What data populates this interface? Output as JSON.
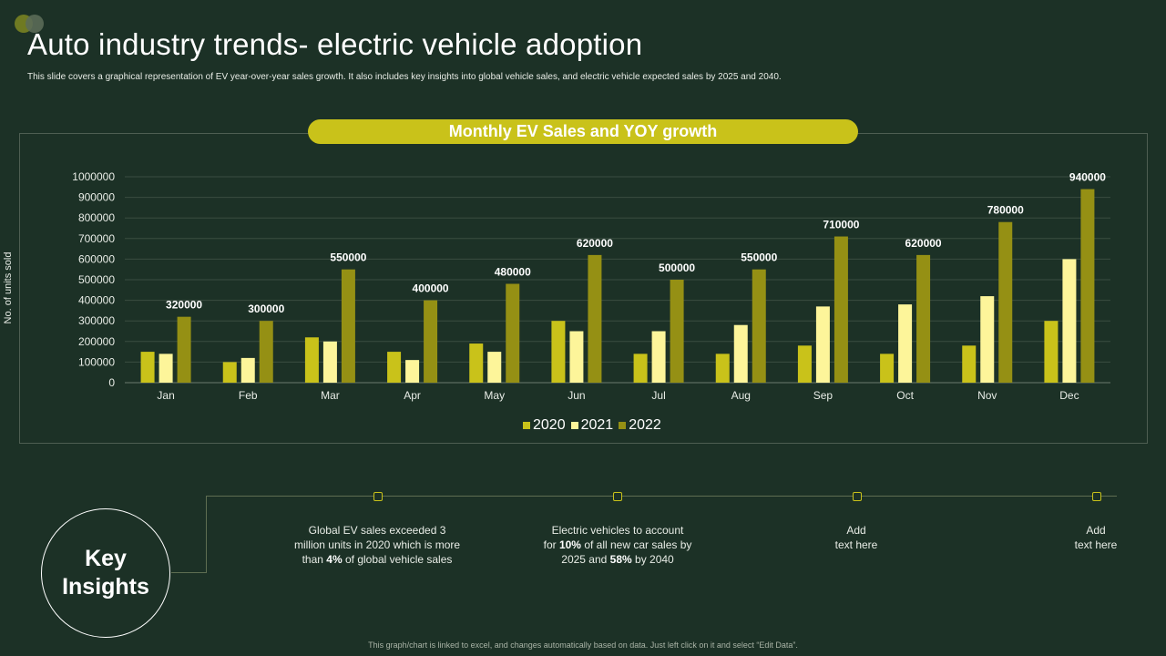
{
  "header": {
    "title": "Auto industry trends- electric vehicle adoption",
    "subtitle": "This slide covers a graphical representation of EV year-over-year sales growth.  It also includes key insights into global vehicle sales, and electric vehicle expected sales by 2025 and 2040."
  },
  "colors": {
    "background": "#1c3126",
    "accent": "#c9c21a",
    "series_2020": "#c9c21a",
    "series_2021": "#fdf59a",
    "series_2022": "#959014"
  },
  "chart_data": {
    "type": "bar",
    "title": "Monthly EV Sales and YOY growth",
    "xlabel": "",
    "ylabel": "No. of units sold",
    "ylim": [
      0,
      1000000
    ],
    "yticks": [
      "0",
      "100000",
      "200000",
      "300000",
      "400000",
      "500000",
      "600000",
      "700000",
      "800000",
      "900000",
      "1000000"
    ],
    "categories": [
      "Jan",
      "Feb",
      "Mar",
      "Apr",
      "May",
      "Jun",
      "Jul",
      "Aug",
      "Sep",
      "Oct",
      "Nov",
      "Dec"
    ],
    "series": [
      {
        "name": "2020",
        "values": [
          150000,
          100000,
          220000,
          150000,
          190000,
          300000,
          140000,
          140000,
          180000,
          140000,
          180000,
          300000
        ]
      },
      {
        "name": "2021",
        "values": [
          140000,
          120000,
          200000,
          110000,
          150000,
          250000,
          250000,
          280000,
          370000,
          380000,
          420000,
          600000
        ]
      },
      {
        "name": "2022",
        "values": [
          320000,
          300000,
          550000,
          400000,
          480000,
          620000,
          500000,
          550000,
          710000,
          620000,
          780000,
          940000
        ]
      }
    ],
    "data_labels_series": "2022",
    "data_labels": [
      "320000",
      "300000",
      "550000",
      "400000",
      "480000",
      "620000",
      "500000",
      "550000",
      "710000",
      "620000",
      "780000",
      "940000"
    ],
    "legend": [
      "2020",
      "2021",
      "2022"
    ],
    "legend_position": "bottom",
    "grid": true
  },
  "insights": {
    "heading_line1": "Key",
    "heading_line2": "Insights",
    "items": [
      {
        "parts": [
          "Global EV sales exceeded 3",
          "million units in 2020 which is more",
          "than ",
          "4%",
          " of global vehicle sales"
        ]
      },
      {
        "parts": [
          "Electric vehicles to account",
          "for ",
          "10%",
          " of all new car sales by",
          "2025 and ",
          "58%",
          " by 2040"
        ]
      },
      {
        "line1": "Add",
        "line2": "text here"
      },
      {
        "line1": "Add",
        "line2": "text here"
      }
    ]
  },
  "footer": {
    "note": "This graph/chart is linked to excel, and changes automatically based on data. Just left click on it and select “Edit Data”."
  }
}
